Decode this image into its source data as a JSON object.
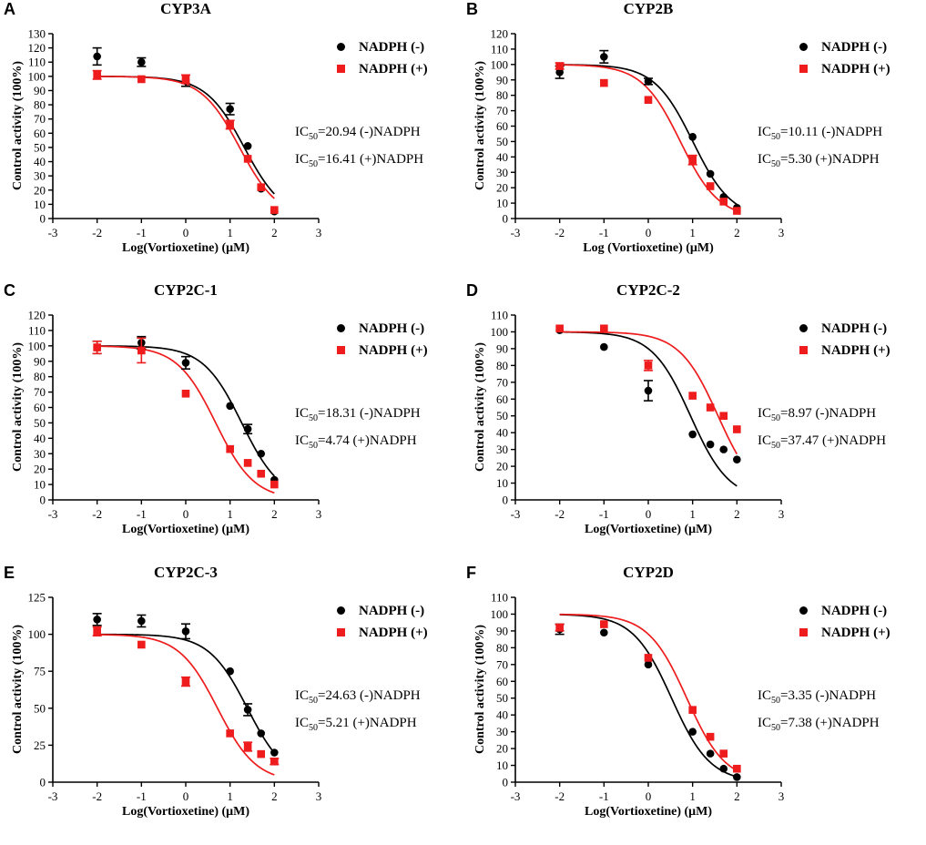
{
  "colors": {
    "minus": "#000000",
    "plus": "#ee1c1c"
  },
  "chart_data": [
    {
      "panel": "A",
      "title": "CYP3A",
      "type": "scatter",
      "xlabel": "Log(Vortioxetine) (μM)",
      "ylabel": "Control activity (100%)",
      "xlim": [
        -3,
        3
      ],
      "ylim": [
        0,
        130
      ],
      "xticks": [
        "-3",
        "-2",
        "-1",
        "0",
        "1",
        "2",
        "3"
      ],
      "yticks": [
        "0",
        "10",
        "20",
        "30",
        "40",
        "50",
        "60",
        "70",
        "80",
        "90",
        "100",
        "110",
        "120",
        "130"
      ],
      "legend": [
        "NADPH (-)",
        "NADPH (+)"
      ],
      "ic50": {
        "minus": "20.94",
        "plus": "16.41"
      },
      "series": [
        {
          "name": "NADPH (-)",
          "marker": "circle",
          "x": [
            -2,
            -1,
            0,
            1,
            1.4,
            1.7,
            2
          ],
          "y": [
            114,
            110,
            97,
            77,
            51,
            21,
            5
          ],
          "err": [
            6,
            3,
            4,
            4,
            1,
            1,
            1
          ],
          "fit": {
            "top": 100,
            "bottom": 0,
            "logIC50": 1.321,
            "hill": 1.0
          }
        },
        {
          "name": "NADPH (+)",
          "marker": "square",
          "x": [
            -2,
            -1,
            0,
            1,
            1.4,
            1.7,
            2
          ],
          "y": [
            101,
            98,
            98,
            66,
            42,
            22,
            6
          ],
          "err": [
            3,
            1,
            3,
            3,
            1,
            1,
            1
          ],
          "fit": {
            "top": 100,
            "bottom": 0,
            "logIC50": 1.215,
            "hill": 1.0
          }
        }
      ]
    },
    {
      "panel": "B",
      "title": "CYP2B",
      "type": "scatter",
      "xlabel": "Log (Vortioxetine) (μM)",
      "ylabel": "Control activity (100%)",
      "xlim": [
        -3,
        3
      ],
      "ylim": [
        0,
        120
      ],
      "xticks": [
        "-3",
        "-2",
        "-1",
        "0",
        "1",
        "2",
        "3"
      ],
      "yticks": [
        "0",
        "10",
        "20",
        "30",
        "40",
        "50",
        "60",
        "70",
        "80",
        "90",
        "100",
        "110",
        "120"
      ],
      "legend": [
        "NADPH (-)",
        "NADPH (+)"
      ],
      "ic50": {
        "minus": "10.11",
        "plus": "5.30"
      },
      "series": [
        {
          "name": "NADPH (-)",
          "marker": "circle",
          "x": [
            -2,
            -1,
            0,
            1,
            1.4,
            1.7,
            2
          ],
          "y": [
            95,
            105,
            89,
            53,
            29,
            14,
            7
          ],
          "err": [
            4,
            4,
            2,
            1,
            1,
            1,
            1
          ],
          "fit": {
            "top": 100,
            "bottom": 0,
            "logIC50": 1.005,
            "hill": 1.0
          }
        },
        {
          "name": "NADPH (+)",
          "marker": "square",
          "x": [
            -2,
            -1,
            0,
            1,
            1.4,
            1.7,
            2
          ],
          "y": [
            99,
            88,
            77,
            38,
            21,
            11,
            5
          ],
          "err": [
            2,
            1,
            1,
            3,
            1,
            1,
            1
          ],
          "fit": {
            "top": 100,
            "bottom": 0,
            "logIC50": 0.724,
            "hill": 1.0
          }
        }
      ]
    },
    {
      "panel": "C",
      "title": "CYP2C-1",
      "type": "scatter",
      "xlabel": "Log(Vortioxetine) (μM)",
      "ylabel": "Control activity (100%)",
      "xlim": [
        -3,
        3
      ],
      "ylim": [
        0,
        120
      ],
      "xticks": [
        "-3",
        "-2",
        "-1",
        "0",
        "1",
        "2",
        "3"
      ],
      "yticks": [
        "0",
        "10",
        "20",
        "30",
        "40",
        "50",
        "60",
        "70",
        "80",
        "90",
        "100",
        "110",
        "120"
      ],
      "legend": [
        "NADPH (-)",
        "NADPH (+)"
      ],
      "ic50": {
        "minus": "18.31",
        "plus": "4.74"
      },
      "series": [
        {
          "name": "NADPH (-)",
          "marker": "circle",
          "x": [
            -2,
            -1,
            0,
            1,
            1.4,
            1.7,
            2
          ],
          "y": [
            99,
            102,
            89,
            61,
            46,
            30,
            13
          ],
          "err": [
            4,
            4,
            4,
            1,
            3,
            1,
            1
          ],
          "fit": {
            "top": 100,
            "bottom": 0,
            "logIC50": 1.263,
            "hill": 1.0
          }
        },
        {
          "name": "NADPH (+)",
          "marker": "square",
          "x": [
            -2,
            -1,
            0,
            1,
            1.4,
            1.7,
            2
          ],
          "y": [
            99,
            97,
            69,
            33,
            24,
            17,
            10
          ],
          "err": [
            4,
            8,
            1,
            1,
            1,
            1,
            1
          ],
          "fit": {
            "top": 100,
            "bottom": 0,
            "logIC50": 0.676,
            "hill": 1.0
          }
        }
      ]
    },
    {
      "panel": "D",
      "title": "CYP2C-2",
      "type": "scatter",
      "xlabel": "Log(Vortioxetine) (μM)",
      "ylabel": "Control activity (100%)",
      "xlim": [
        -3,
        3
      ],
      "ylim": [
        0,
        110
      ],
      "xticks": [
        "-3",
        "-2",
        "-1",
        "0",
        "1",
        "2",
        "3"
      ],
      "yticks": [
        "0",
        "10",
        "20",
        "30",
        "40",
        "50",
        "60",
        "70",
        "80",
        "90",
        "100",
        "110"
      ],
      "legend": [
        "NADPH (-)",
        "NADPH (+)"
      ],
      "ic50": {
        "minus": "8.97",
        "plus": "37.47"
      },
      "series": [
        {
          "name": "NADPH (-)",
          "marker": "circle",
          "x": [
            -2,
            -1,
            0,
            1,
            1.4,
            1.7,
            2
          ],
          "y": [
            101,
            91,
            65,
            39,
            33,
            30,
            24
          ],
          "err": [
            1,
            1,
            6,
            1,
            1,
            1,
            1
          ],
          "fit": {
            "top": 100,
            "bottom": 0,
            "logIC50": 0.953,
            "hill": 1.0
          }
        },
        {
          "name": "NADPH (+)",
          "marker": "square",
          "x": [
            -2,
            -1,
            0,
            1,
            1.4,
            1.7,
            2
          ],
          "y": [
            102,
            102,
            80,
            62,
            55,
            50,
            42
          ],
          "err": [
            1,
            1,
            3,
            1,
            1,
            1,
            1
          ],
          "fit": {
            "top": 100,
            "bottom": 0,
            "logIC50": 1.574,
            "hill": 1.0
          }
        }
      ]
    },
    {
      "panel": "E",
      "title": "CYP2C-3",
      "type": "scatter",
      "xlabel": "Log(Vortioxetine) (μM)",
      "ylabel": "Control activity (100%)",
      "xlim": [
        -3,
        3
      ],
      "ylim": [
        0,
        125
      ],
      "xticks": [
        "-3",
        "-2",
        "-1",
        "0",
        "1",
        "2",
        "3"
      ],
      "yticks": [
        "0",
        "25",
        "50",
        "75",
        "100",
        "125"
      ],
      "legend": [
        "NADPH (-)",
        "NADPH (+)"
      ],
      "ic50": {
        "minus": "24.63",
        "plus": "5.21"
      },
      "series": [
        {
          "name": "NADPH (-)",
          "marker": "circle",
          "x": [
            -2,
            -1,
            0,
            1,
            1.4,
            1.7,
            2
          ],
          "y": [
            110,
            109,
            102,
            75,
            49,
            33,
            20
          ],
          "err": [
            4,
            4,
            5,
            1,
            4,
            1,
            1
          ],
          "fit": {
            "top": 100,
            "bottom": 0,
            "logIC50": 1.391,
            "hill": 1.0
          }
        },
        {
          "name": "NADPH (+)",
          "marker": "square",
          "x": [
            -2,
            -1,
            0,
            1,
            1.4,
            1.7,
            2
          ],
          "y": [
            102,
            93,
            68,
            33,
            24,
            19,
            14
          ],
          "err": [
            3,
            1,
            3,
            1,
            3,
            1,
            2
          ],
          "fit": {
            "top": 100,
            "bottom": 0,
            "logIC50": 0.717,
            "hill": 1.0
          }
        }
      ]
    },
    {
      "panel": "F",
      "title": "CYP2D",
      "type": "scatter",
      "xlabel": "Log(Vortioxetine) (μM)",
      "ylabel": "Control activity (100%)",
      "xlim": [
        -3,
        3
      ],
      "ylim": [
        0,
        110
      ],
      "xticks": [
        "-3",
        "-2",
        "-1",
        "0",
        "1",
        "2",
        "3"
      ],
      "yticks": [
        "0",
        "10",
        "20",
        "30",
        "40",
        "50",
        "60",
        "70",
        "80",
        "90",
        "100",
        "110"
      ],
      "legend": [
        "NADPH (-)",
        "NADPH (+)"
      ],
      "ic50": {
        "minus": "3.35",
        "plus": "7.38"
      },
      "series": [
        {
          "name": "NADPH (-)",
          "marker": "circle",
          "x": [
            -2,
            -1,
            0,
            1,
            1.4,
            1.7,
            2
          ],
          "y": [
            91,
            89,
            70,
            30,
            17,
            8,
            3
          ],
          "err": [
            3,
            1,
            1,
            1,
            1,
            1,
            1
          ],
          "fit": {
            "top": 100,
            "bottom": 0,
            "logIC50": 0.525,
            "hill": 1.0
          }
        },
        {
          "name": "NADPH (+)",
          "marker": "square",
          "x": [
            -2,
            -1,
            0,
            1,
            1.4,
            1.7,
            2
          ],
          "y": [
            92,
            94,
            74,
            43,
            27,
            17,
            8
          ],
          "err": [
            2,
            1,
            1,
            1,
            1,
            1,
            1
          ],
          "fit": {
            "top": 100,
            "bottom": 0,
            "logIC50": 0.868,
            "hill": 1.0
          }
        }
      ]
    }
  ]
}
